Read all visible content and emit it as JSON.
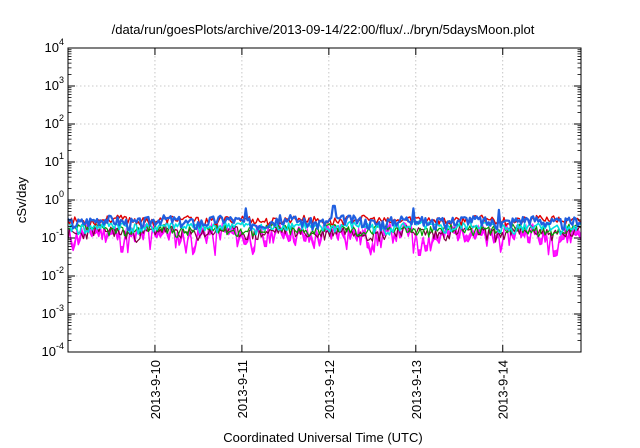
{
  "chart_data": {
    "type": "line",
    "title": "/data/run/goesPlots/archive/2013-09-14/22:00/flux/../bryn/5daysMoon.plot",
    "xlabel": "Coordinated Universal Time (UTC)",
    "ylabel": "cSv/day",
    "yscale": "log",
    "ylim": [
      0.0001,
      10000
    ],
    "xlim": [
      0,
      5.9
    ],
    "grid": true,
    "legend": "none",
    "y_ticks": [
      {
        "base": "10",
        "exp": "-4",
        "value": 0.0001
      },
      {
        "base": "10",
        "exp": "-3",
        "value": 0.001
      },
      {
        "base": "10",
        "exp": "-2",
        "value": 0.01
      },
      {
        "base": "10",
        "exp": "-1",
        "value": 0.1
      },
      {
        "base": "10",
        "exp": "0",
        "value": 1
      },
      {
        "base": "10",
        "exp": "1",
        "value": 10
      },
      {
        "base": "10",
        "exp": "2",
        "value": 100
      },
      {
        "base": "10",
        "exp": "3",
        "value": 1000
      },
      {
        "base": "10",
        "exp": "4",
        "value": 10000
      }
    ],
    "x_ticks": [
      {
        "label": "2013-9-10",
        "value": 1
      },
      {
        "label": "2013-9-11",
        "value": 2
      },
      {
        "label": "2013-9-12",
        "value": 3
      },
      {
        "label": "2013-9-13",
        "value": 4
      },
      {
        "label": "2013-9-14",
        "value": 5
      }
    ],
    "series": [
      {
        "color": "#ff00ff",
        "width": 1.4,
        "fill": true,
        "base": 0.115,
        "amp": 0.06,
        "seed": 11,
        "dips": [
          {
            "x": 0.95,
            "v": 0.05
          },
          {
            "x": 1.69,
            "v": 0.035
          },
          {
            "x": 2.27,
            "v": 0.06
          },
          {
            "x": 3.2,
            "v": 0.05
          },
          {
            "x": 3.97,
            "v": 0.04
          },
          {
            "x": 4.04,
            "v": 0.035
          },
          {
            "x": 5.45,
            "v": 0.07
          }
        ]
      },
      {
        "color": "#800040",
        "width": 1.2,
        "fill": false,
        "base": 0.145,
        "amp": 0.05,
        "seed": 23,
        "dips": []
      },
      {
        "color": "#00a000",
        "width": 1.2,
        "fill": false,
        "base": 0.17,
        "amp": 0.05,
        "seed": 37,
        "dips": []
      },
      {
        "color": "#00e0e0",
        "width": 1.6,
        "fill": false,
        "base": 0.2,
        "amp": 0.06,
        "seed": 41,
        "dips": []
      },
      {
        "color": "#e00000",
        "width": 1.4,
        "fill": false,
        "base": 0.3,
        "amp": 0.07,
        "seed": 53,
        "dips": []
      },
      {
        "color": "#1f5fe0",
        "width": 2.2,
        "fill": false,
        "base": 0.28,
        "amp": 0.09,
        "seed": 67,
        "spikes": [
          {
            "x": 2.05,
            "v": 0.6
          },
          {
            "x": 3.06,
            "v": 0.7
          },
          {
            "x": 3.98,
            "v": 0.6
          },
          {
            "x": 4.95,
            "v": 0.55
          }
        ]
      }
    ]
  }
}
